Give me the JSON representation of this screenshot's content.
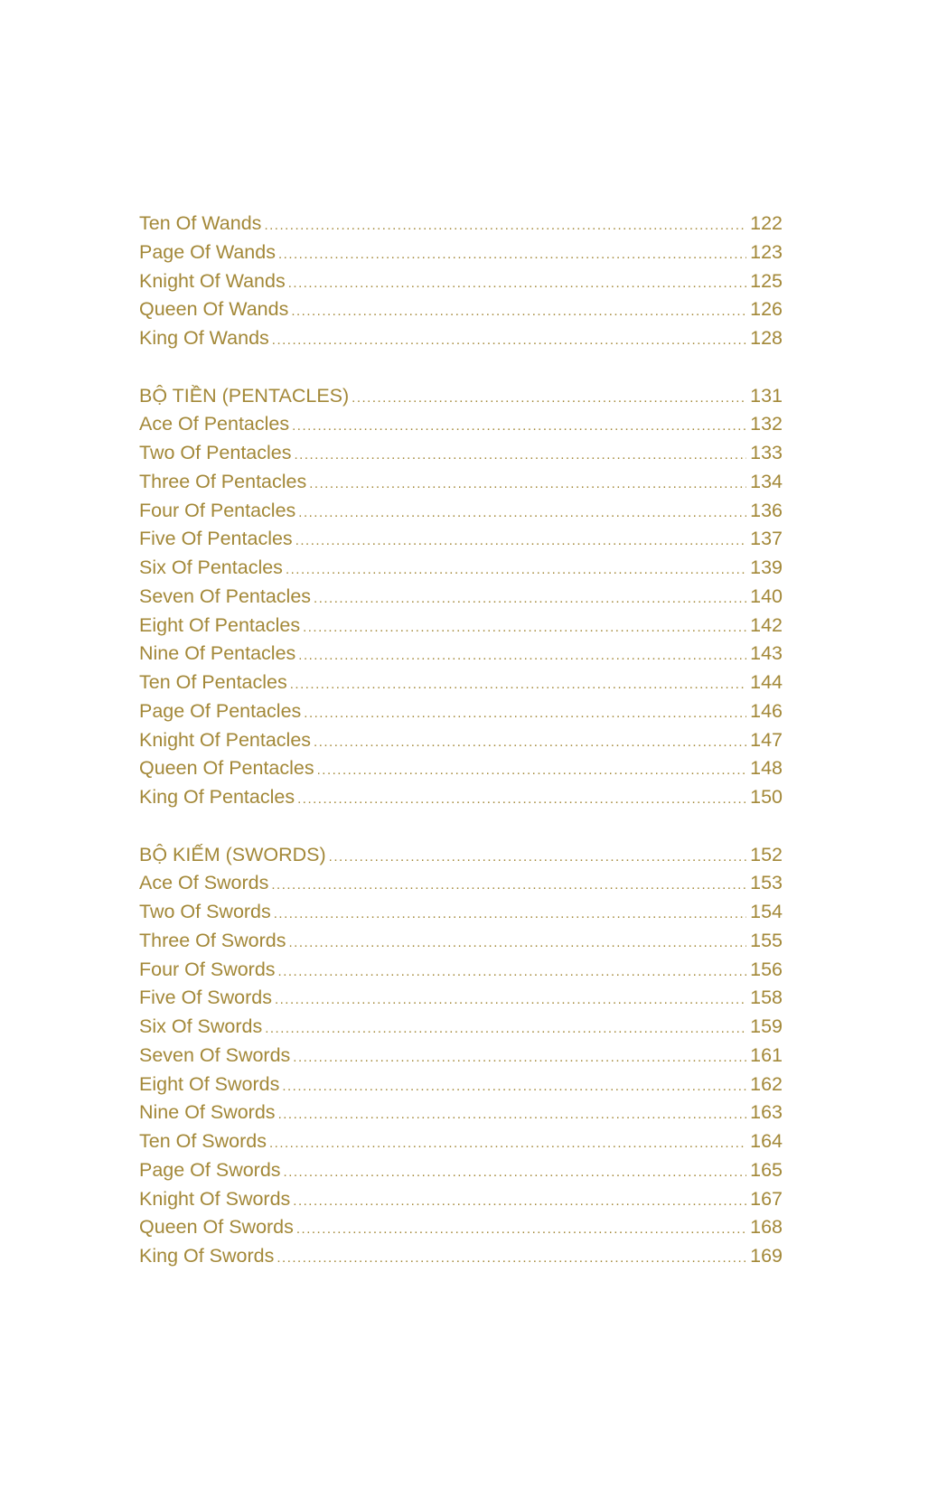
{
  "sections": [
    {
      "header": null,
      "items": [
        {
          "title": "Ten Of Wands",
          "page": "122"
        },
        {
          "title": "Page Of Wands",
          "page": "123"
        },
        {
          "title": "Knight Of Wands",
          "page": "125"
        },
        {
          "title": "Queen Of Wands",
          "page": "126"
        },
        {
          "title": "King Of Wands",
          "page": "128"
        }
      ]
    },
    {
      "header": {
        "title": "BỘ TIỀN (PENTACLES)",
        "page": "131"
      },
      "items": [
        {
          "title": "Ace Of Pentacles",
          "page": "132"
        },
        {
          "title": "Two Of Pentacles",
          "page": "133"
        },
        {
          "title": "Three Of Pentacles",
          "page": "134"
        },
        {
          "title": "Four Of Pentacles",
          "page": "136"
        },
        {
          "title": "Five Of Pentacles",
          "page": "137"
        },
        {
          "title": "Six Of Pentacles",
          "page": "139"
        },
        {
          "title": "Seven Of Pentacles",
          "page": "140"
        },
        {
          "title": "Eight Of Pentacles",
          "page": "142"
        },
        {
          "title": "Nine Of Pentacles",
          "page": "143"
        },
        {
          "title": "Ten Of Pentacles",
          "page": "144"
        },
        {
          "title": "Page Of Pentacles",
          "page": "146"
        },
        {
          "title": "Knight Of Pentacles",
          "page": "147"
        },
        {
          "title": "Queen Of Pentacles",
          "page": "148"
        },
        {
          "title": "King Of Pentacles",
          "page": "150"
        }
      ]
    },
    {
      "header": {
        "title": "BỘ KIẾM (SWORDS)",
        "page": "152"
      },
      "items": [
        {
          "title": "Ace Of Swords",
          "page": "153"
        },
        {
          "title": "Two Of Swords",
          "page": "154"
        },
        {
          "title": "Three Of Swords",
          "page": "155"
        },
        {
          "title": "Four Of Swords",
          "page": "156"
        },
        {
          "title": "Five Of Swords",
          "page": "158"
        },
        {
          "title": "Six Of Swords",
          "page": "159"
        },
        {
          "title": "Seven Of Swords",
          "page": "161"
        },
        {
          "title": "Eight Of Swords",
          "page": "162"
        },
        {
          "title": "Nine Of Swords",
          "page": "163"
        },
        {
          "title": "Ten Of Swords",
          "page": "164"
        },
        {
          "title": "Page Of Swords",
          "page": "165"
        },
        {
          "title": "Knight Of Swords",
          "page": "167"
        },
        {
          "title": "Queen Of Swords",
          "page": "168"
        },
        {
          "title": "King Of Swords",
          "page": "169"
        }
      ]
    }
  ],
  "colors": {
    "text": "#a38838"
  }
}
